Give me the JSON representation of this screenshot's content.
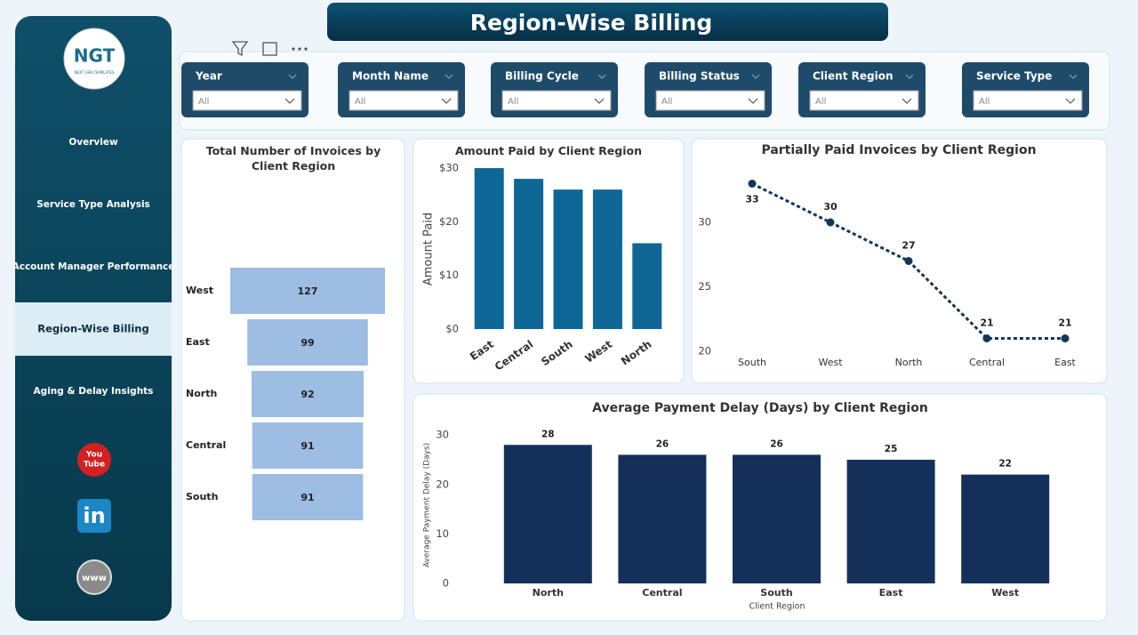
{
  "header": {
    "title": "Region-Wise Billing"
  },
  "logo": {
    "text": "NGT",
    "tagline": "NEXT GEN TEMPLATES"
  },
  "nav": {
    "items": [
      "Overview",
      "Service Type Analysis",
      "Account Manager Performance",
      "Region-Wise Billing",
      "Aging & Delay Insights"
    ],
    "active": 3
  },
  "social": {
    "youtube": [
      "You",
      "Tube"
    ],
    "linkedin": "in",
    "web": "www"
  },
  "filters": [
    {
      "label": "Year",
      "value": "All"
    },
    {
      "label": "Month Name",
      "value": "All"
    },
    {
      "label": "Billing Cycle",
      "value": "All"
    },
    {
      "label": "Billing Status",
      "value": "All"
    },
    {
      "label": "Client Region",
      "value": "All"
    },
    {
      "label": "Service Type",
      "value": "All"
    }
  ],
  "chart_data": [
    {
      "type": "funnel",
      "title": "Total Number of Invoices by Client Region",
      "categories": [
        "West",
        "East",
        "North",
        "Central",
        "South"
      ],
      "values": [
        127,
        99,
        92,
        91,
        91
      ],
      "color": "#9dbde3",
      "data_labels": true
    },
    {
      "type": "bar",
      "title": "Amount Paid by Client Region",
      "ylabel": "Amount Paid",
      "categories": [
        "East",
        "Central",
        "South",
        "West",
        "North"
      ],
      "values": [
        30,
        28,
        26,
        26,
        16
      ],
      "color": "#0f6796",
      "ylim": [
        0,
        31
      ],
      "yticks": [
        {
          "value": 0,
          "label": "$0"
        },
        {
          "value": 10,
          "label": "$10"
        },
        {
          "value": 20,
          "label": "$20"
        },
        {
          "value": 30,
          "label": "$30"
        }
      ],
      "data_labels": false
    },
    {
      "type": "line",
      "title": "Partially Paid Invoices by Client Region",
      "categories": [
        "South",
        "West",
        "North",
        "Central",
        "East"
      ],
      "values": [
        33,
        30,
        27,
        21,
        21
      ],
      "color": "#14365a",
      "ylim": [
        20,
        34
      ],
      "yticks": [
        20,
        25,
        30
      ],
      "data_labels": true
    },
    {
      "type": "bar",
      "title": "Average Payment Delay (Days) by Client Region",
      "ylabel": "Average Payment Delay (Days)",
      "xlabel": "Client Region",
      "categories": [
        "North",
        "Central",
        "South",
        "East",
        "West"
      ],
      "values": [
        28,
        26,
        26,
        25,
        22
      ],
      "color": "#14305a",
      "ylim": [
        0,
        32
      ],
      "yticks": [
        0,
        10,
        20,
        30
      ],
      "data_labels": true
    }
  ]
}
